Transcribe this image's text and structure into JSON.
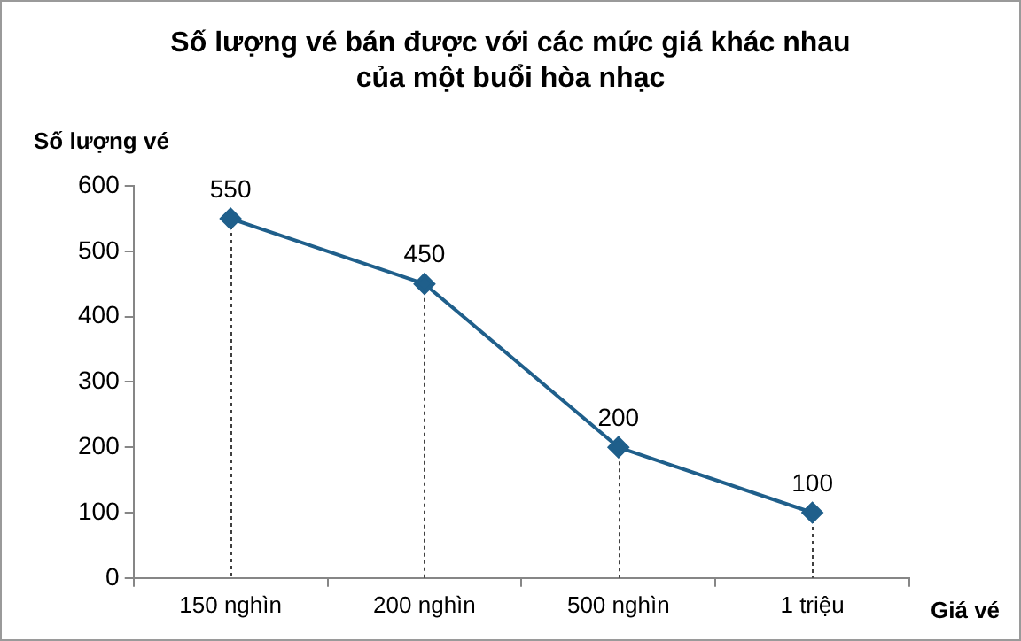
{
  "chart_data": {
    "type": "line",
    "title": "Số lượng vé bán được với các mức giá khác nhau của một buổi hòa nhạc",
    "ylabel": "Số lượng vé",
    "xlabel": "Giá vé",
    "categories": [
      "150 nghìn",
      "200 nghìn",
      "500 nghìn",
      "1 triệu"
    ],
    "series": [
      {
        "color": "#1f5f8b",
        "values": [
          550,
          450,
          200,
          100
        ]
      }
    ],
    "ylim": [
      0,
      600
    ],
    "yticks": [
      0,
      100,
      200,
      300,
      400,
      500,
      600
    ],
    "grid": "x",
    "legend": false,
    "marker": "diamond",
    "line_style": "solid",
    "data_labels": true
  }
}
